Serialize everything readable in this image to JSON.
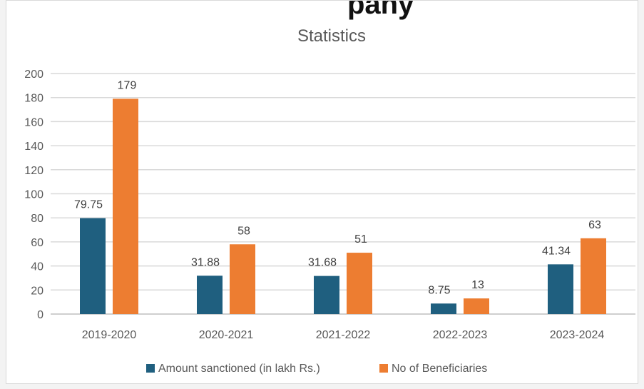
{
  "top_clipped_text": "pany",
  "chart_data": {
    "type": "bar",
    "title": "Statistics",
    "categories": [
      "2019-2020",
      "2020-2021",
      "2021-2022",
      "2022-2023",
      "2023-2024"
    ],
    "series": [
      {
        "name": "Amount sanctioned (in lakh Rs.)",
        "values": [
          79.75,
          31.88,
          31.68,
          8.75,
          41.34
        ],
        "color": "#1f5f7f"
      },
      {
        "name": "No of Beneficiaries",
        "values": [
          179,
          58,
          51,
          13,
          63
        ],
        "color": "#ed7d31"
      }
    ],
    "ylim": [
      0,
      200
    ],
    "yticks": [
      0,
      20,
      40,
      60,
      80,
      100,
      120,
      140,
      160,
      180,
      200
    ],
    "grid": true,
    "legend_position": "bottom",
    "xlabel": "",
    "ylabel": ""
  }
}
